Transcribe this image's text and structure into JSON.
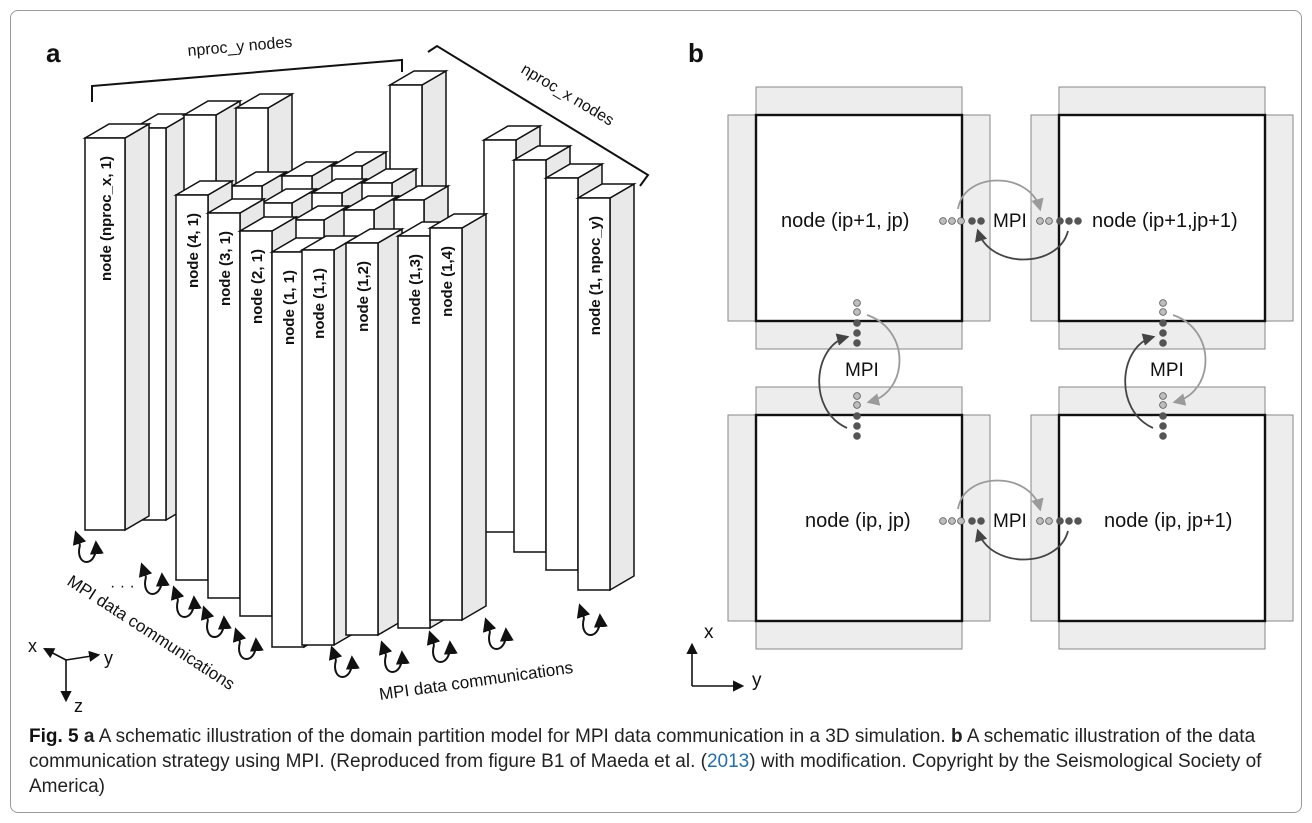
{
  "panel_a": {
    "label": "a",
    "top_bracket_label": "nproc_y nodes",
    "right_bracket_label": "nproc_x nodes",
    "back_column_label": "node (nproc_x, 1)",
    "left_column_labels": [
      "node (4, 1)",
      "node (3, 1)",
      "node (2, 1)",
      "node (1, 1)"
    ],
    "front_column_labels": [
      "node (1,1)",
      "node (1,2)",
      "node (1,3)",
      "node (1,4)"
    ],
    "right_column_label": "node (1, npoc_y)",
    "ellipsis": "· · ·",
    "left_comm_label": "MPI data communications",
    "bottom_comm_label": "MPI data communications",
    "axes": {
      "x": "x",
      "y": "y",
      "z": "z"
    }
  },
  "panel_b": {
    "label": "b",
    "nodes": {
      "top_left": "node (ip+1, jp)",
      "top_right": "node (ip+1,jp+1)",
      "bottom_left": "node (ip, jp)",
      "bottom_right": "node (ip, jp+1)"
    },
    "mpi_label": "MPI",
    "axes": {
      "x": "x",
      "y": "y"
    }
  },
  "caption": {
    "fig_label": "Fig. 5",
    "a_label": "a",
    "a_text": "A schematic illustration of the domain partition model for MPI data communication in a 3D simulation.",
    "b_label": "b",
    "b_text": "A schematic illustration of the data communication strategy using MPI.  (Reproduced from figure B1 of Maeda et al. (",
    "ref_year": "2013",
    "tail_text": ") with modification. Copyright by the Seismological Society of America)"
  },
  "colors": {
    "frame": "#9a9a9a",
    "face": "#ffffff",
    "side": "#e8e8e8",
    "halo": "#ededed",
    "link": "#1f6fb5"
  }
}
